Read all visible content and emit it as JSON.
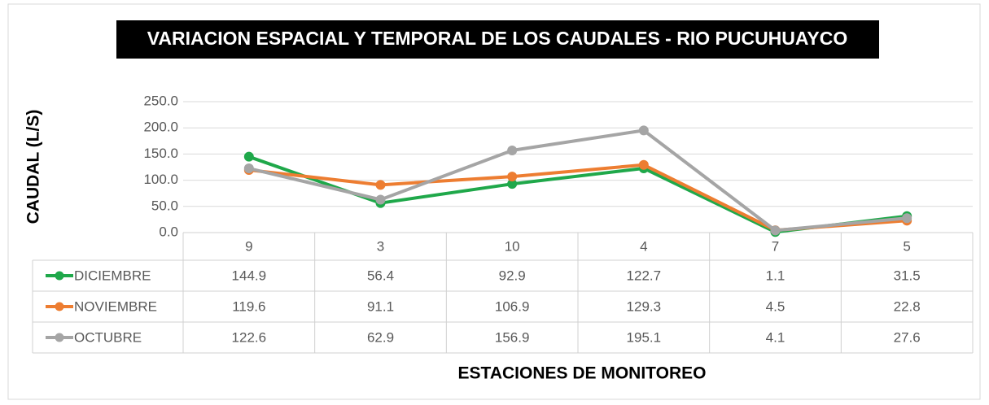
{
  "chart_data": {
    "type": "line",
    "title": "VARIACION ESPACIAL Y TEMPORAL DE LOS CAUDALES -  RIO PUCUHUAYCO",
    "y_label": "CAUDAL (L/S)",
    "x_label": "ESTACIONES DE MONITOREO",
    "categories": [
      "9",
      "3",
      "10",
      "4",
      "7",
      "5"
    ],
    "series": [
      {
        "name": "DICIEMBRE",
        "color": "#1fa84a",
        "values": [
          144.9,
          56.4,
          92.9,
          122.7,
          1.1,
          31.5
        ]
      },
      {
        "name": "NOVIEMBRE",
        "color": "#ed7d31",
        "values": [
          119.6,
          91.1,
          106.9,
          129.3,
          4.5,
          22.8
        ]
      },
      {
        "name": "OCTUBRE",
        "color": "#a5a5a5",
        "values": [
          122.6,
          62.9,
          156.9,
          195.1,
          4.1,
          27.6
        ]
      }
    ],
    "ylim": [
      0,
      250
    ],
    "yticks": [
      {
        "value": 0,
        "label": "0.0"
      },
      {
        "value": 50,
        "label": "50.0"
      },
      {
        "value": 100,
        "label": "100.0"
      },
      {
        "value": 150,
        "label": "150.0"
      },
      {
        "value": 200,
        "label": "200.0"
      },
      {
        "value": 250,
        "label": "250.0"
      }
    ],
    "grid": true,
    "data_table": true
  }
}
